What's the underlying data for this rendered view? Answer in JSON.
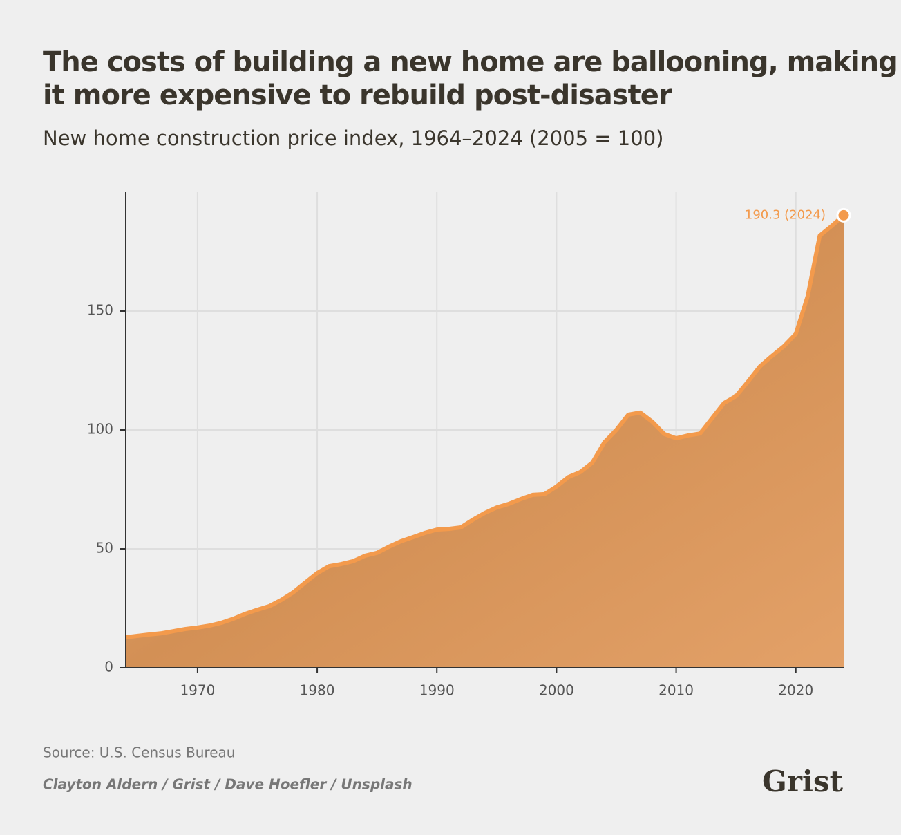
{
  "chart_data": {
    "type": "area",
    "title": "The costs of building a new home are ballooning, making it more expensive to rebuild post-disaster",
    "subtitle": "New home construction price index, 1964–2024 (2005 = 100)",
    "x": [
      1964,
      1965,
      1966,
      1967,
      1968,
      1969,
      1970,
      1971,
      1972,
      1973,
      1974,
      1975,
      1976,
      1977,
      1978,
      1979,
      1980,
      1981,
      1982,
      1983,
      1984,
      1985,
      1986,
      1987,
      1988,
      1989,
      1990,
      1991,
      1992,
      1993,
      1994,
      1995,
      1996,
      1997,
      1998,
      1999,
      2000,
      2001,
      2002,
      2003,
      2004,
      2005,
      2006,
      2007,
      2008,
      2009,
      2010,
      2011,
      2012,
      2013,
      2014,
      2015,
      2016,
      2017,
      2018,
      2019,
      2020,
      2021,
      2022,
      2023,
      2024
    ],
    "values": [
      12.8,
      13.4,
      14,
      14.5,
      15.4,
      16.3,
      16.9,
      17.7,
      18.9,
      20.6,
      22.7,
      24.4,
      25.9,
      28.5,
      31.7,
      35.8,
      39.8,
      42.7,
      43.6,
      44.8,
      47.1,
      48.3,
      50.9,
      53.2,
      54.9,
      56.7,
      58.1,
      58.4,
      59,
      62.2,
      65.1,
      67.4,
      68.9,
      70.9,
      72.7,
      73,
      76.2,
      80.2,
      82.3,
      86.3,
      94.8,
      100,
      106.4,
      107.3,
      103.5,
      98.3,
      96.5,
      97.7,
      98.5,
      104.9,
      111.3,
      114.2,
      120.3,
      126.7,
      131.1,
      135.2,
      140.4,
      156.4,
      181.7,
      185.8,
      190.3
    ],
    "color": "#f39a4c",
    "annotation": "190.3 (2024)",
    "xlim": [
      1964,
      2024
    ],
    "xticks": [
      1970,
      1980,
      1990,
      2000,
      2010,
      2020
    ],
    "ylim": [
      0,
      200
    ],
    "yticks": [
      0,
      50,
      100,
      150
    ],
    "grid": true
  },
  "source": "Source: U.S. Census Bureau",
  "credit": "Clayton Aldern / Grist / Dave Hoefler / Unsplash",
  "logo": "Grist"
}
